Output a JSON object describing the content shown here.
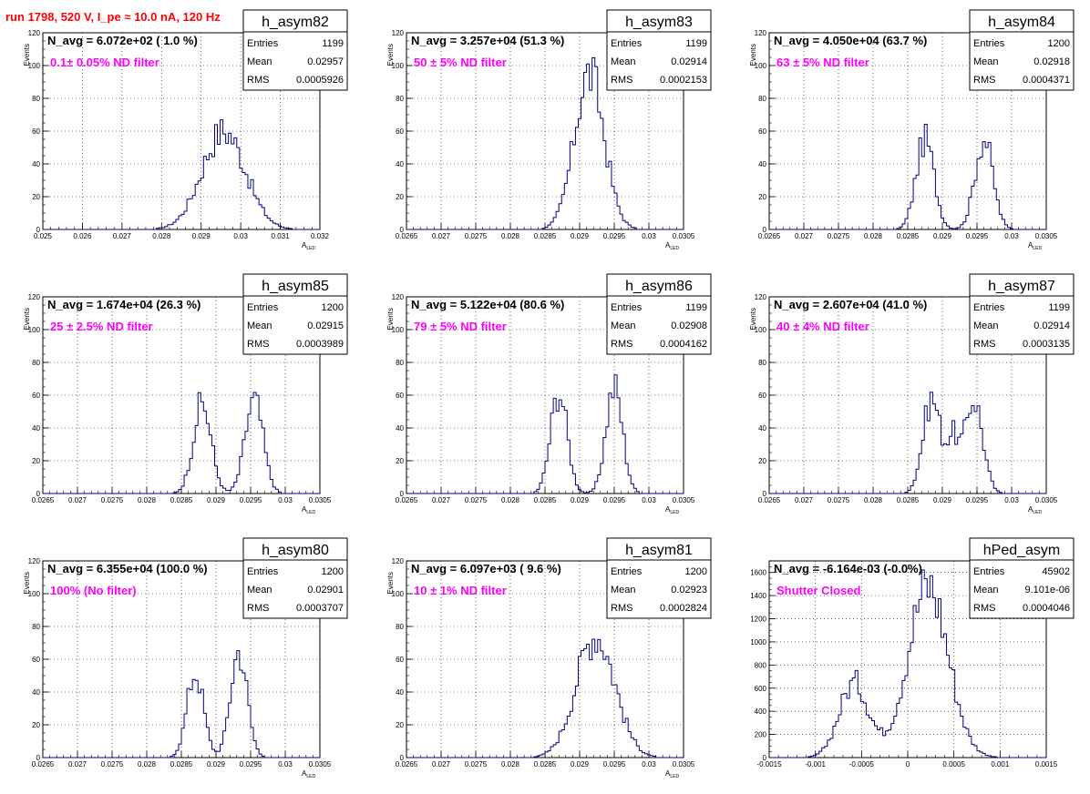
{
  "run_title": "run 1798,   520 V, I_pe ≈ 10.0 nA, 120 Hz",
  "stats_labels": [
    "Entries",
    "Mean",
    "RMS"
  ],
  "hist_color": "#000080",
  "title_color": "#ff0000",
  "filter_color": "#ff00ff",
  "chart_data": [
    {
      "type": "histogram",
      "hist_name": "h_asym82",
      "navg": "N_avg = 6.072e+02 ( 1.0 %)",
      "filter": "0.1± 0.05% ND filter",
      "stats": [
        "1199",
        "0.02957",
        "0.0005926"
      ],
      "xlabel": "A",
      "xlabel_sub": "LED",
      "ylabel": "Events",
      "xlim": [
        0.025,
        0.032
      ],
      "ylim": [
        0,
        120
      ],
      "xticks": [
        0.025,
        0.026,
        0.027,
        0.028,
        0.029,
        0.03,
        0.031,
        0.032
      ],
      "xtick_labels": [
        "0.025",
        "0.026",
        "0.027",
        "0.028",
        "0.029",
        "0.03",
        "0.031",
        "0.032"
      ],
      "yticks": [
        0,
        20,
        40,
        60,
        80,
        100,
        120
      ],
      "ytick_labels": [
        "0",
        "20",
        "40",
        "60",
        "80",
        "100",
        "120"
      ],
      "peaks": [
        [
          0.02957,
          0.00055,
          60
        ]
      ]
    },
    {
      "type": "histogram",
      "hist_name": "h_asym83",
      "navg": "N_avg = 3.257e+04 (51.3 %)",
      "filter": "50 ± 5% ND filter",
      "stats": [
        "1199",
        "0.02914",
        "0.0002153"
      ],
      "xlabel": "A",
      "xlabel_sub": "LED",
      "ylabel": "Events",
      "xlim": [
        0.0265,
        0.0305
      ],
      "ylim": [
        0,
        120
      ],
      "xticks": [
        0.0265,
        0.027,
        0.0275,
        0.028,
        0.0285,
        0.029,
        0.0295,
        0.03,
        0.0305
      ],
      "xtick_labels": [
        "0.0265",
        "0.027",
        "0.0275",
        "0.028",
        "0.0285",
        "0.029",
        "0.0295",
        "0.03",
        "0.0305"
      ],
      "yticks": [
        0,
        20,
        40,
        60,
        80,
        100,
        120
      ],
      "ytick_labels": [
        "0",
        "20",
        "40",
        "60",
        "80",
        "100",
        "120"
      ],
      "peaks": [
        [
          0.02914,
          0.000215,
          95
        ]
      ]
    },
    {
      "type": "histogram",
      "hist_name": "h_asym84",
      "navg": "N_avg = 4.050e+04 (63.7 %)",
      "filter": "63 ± 5% ND filter",
      "stats": [
        "1200",
        "0.02918",
        "0.0004371"
      ],
      "xlabel": "A",
      "xlabel_sub": "LED",
      "ylabel": "Events",
      "xlim": [
        0.0265,
        0.0305
      ],
      "ylim": [
        0,
        120
      ],
      "xticks": [
        0.0265,
        0.027,
        0.0275,
        0.028,
        0.0285,
        0.029,
        0.0295,
        0.03,
        0.0305
      ],
      "xtick_labels": [
        "0.0265",
        "0.027",
        "0.0275",
        "0.028",
        "0.0285",
        "0.029",
        "0.0295",
        "0.03",
        "0.0305"
      ],
      "yticks": [
        0,
        20,
        40,
        60,
        80,
        100,
        120
      ],
      "ytick_labels": [
        "0",
        "20",
        "40",
        "60",
        "80",
        "100",
        "120"
      ],
      "peaks": [
        [
          0.02875,
          0.00013,
          55
        ],
        [
          0.0296,
          0.00013,
          55
        ]
      ]
    },
    {
      "type": "histogram",
      "hist_name": "h_asym85",
      "navg": "N_avg = 1.674e+04 (26.3 %)",
      "filter": "25 ± 2.5% ND filter",
      "stats": [
        "1200",
        "0.02915",
        "0.0003989"
      ],
      "xlabel": "A",
      "xlabel_sub": "LED",
      "ylabel": "Events",
      "xlim": [
        0.0265,
        0.0305
      ],
      "ylim": [
        0,
        120
      ],
      "xticks": [
        0.0265,
        0.027,
        0.0275,
        0.028,
        0.0285,
        0.029,
        0.0295,
        0.03,
        0.0305
      ],
      "xtick_labels": [
        "0.0265",
        "0.027",
        "0.0275",
        "0.028",
        "0.0285",
        "0.029",
        "0.0295",
        "0.03",
        "0.0305"
      ],
      "yticks": [
        0,
        20,
        40,
        60,
        80,
        100,
        120
      ],
      "ytick_labels": [
        "0",
        "20",
        "40",
        "60",
        "80",
        "100",
        "120"
      ],
      "peaks": [
        [
          0.0288,
          0.00013,
          55
        ],
        [
          0.02955,
          0.00013,
          57
        ]
      ]
    },
    {
      "type": "histogram",
      "hist_name": "h_asym86",
      "navg": "N_avg = 5.122e+04 (80.6 %)",
      "filter": "79 ± 5% ND filter",
      "stats": [
        "1199",
        "0.02908",
        "0.0004162"
      ],
      "xlabel": "A",
      "xlabel_sub": "LED",
      "ylabel": "Events",
      "xlim": [
        0.0265,
        0.0305
      ],
      "ylim": [
        0,
        120
      ],
      "xticks": [
        0.0265,
        0.027,
        0.0275,
        0.028,
        0.0285,
        0.029,
        0.0295,
        0.03,
        0.0305
      ],
      "xtick_labels": [
        "0.0265",
        "0.027",
        "0.0275",
        "0.028",
        "0.0285",
        "0.029",
        "0.0295",
        "0.03",
        "0.0305"
      ],
      "yticks": [
        0,
        20,
        40,
        60,
        80,
        100,
        120
      ],
      "ytick_labels": [
        "0",
        "20",
        "40",
        "60",
        "80",
        "100",
        "120"
      ],
      "peaks": [
        [
          0.0287,
          0.00012,
          62
        ],
        [
          0.0295,
          0.00012,
          65
        ]
      ]
    },
    {
      "type": "histogram",
      "hist_name": "h_asym87",
      "navg": "N_avg = 2.607e+04 (41.0 %)",
      "filter": "40 ± 4% ND filter",
      "stats": [
        "1199",
        "0.02914",
        "0.0003135"
      ],
      "xlabel": "A",
      "xlabel_sub": "LED",
      "ylabel": "Events",
      "xlim": [
        0.0265,
        0.0305
      ],
      "ylim": [
        0,
        120
      ],
      "xticks": [
        0.0265,
        0.027,
        0.0275,
        0.028,
        0.0285,
        0.029,
        0.0295,
        0.03,
        0.0305
      ],
      "xtick_labels": [
        "0.0265",
        "0.027",
        "0.0275",
        "0.028",
        "0.0285",
        "0.029",
        "0.0295",
        "0.03",
        "0.0305"
      ],
      "yticks": [
        0,
        20,
        40,
        60,
        80,
        100,
        120
      ],
      "ytick_labels": [
        "0",
        "20",
        "40",
        "60",
        "80",
        "100",
        "120"
      ],
      "peaks": [
        [
          0.02885,
          0.00013,
          58
        ],
        [
          0.02945,
          0.00013,
          58
        ],
        [
          0.02915,
          8e-05,
          30
        ]
      ]
    },
    {
      "type": "histogram",
      "hist_name": "h_asym80",
      "navg": "N_avg = 6.355e+04 (100.0 %)",
      "filter": "100% (No filter)",
      "stats": [
        "1200",
        "0.02901",
        "0.0003707"
      ],
      "xlabel": "A",
      "xlabel_sub": "LED",
      "ylabel": "Events",
      "xlim": [
        0.0265,
        0.0305
      ],
      "ylim": [
        0,
        120
      ],
      "xticks": [
        0.0265,
        0.027,
        0.0275,
        0.028,
        0.0285,
        0.029,
        0.0295,
        0.03,
        0.0305
      ],
      "xtick_labels": [
        "0.0265",
        "0.027",
        "0.0275",
        "0.028",
        "0.0285",
        "0.029",
        "0.0295",
        "0.03",
        "0.0305"
      ],
      "yticks": [
        0,
        20,
        40,
        60,
        80,
        100,
        120
      ],
      "ytick_labels": [
        "0",
        "20",
        "40",
        "60",
        "80",
        "100",
        "120"
      ],
      "peaks": [
        [
          0.0287,
          0.00012,
          52
        ],
        [
          0.02933,
          0.00012,
          65
        ]
      ]
    },
    {
      "type": "histogram",
      "hist_name": "h_asym81",
      "navg": "N_avg = 6.097e+03 ( 9.6 %)",
      "filter": "10 ± 1% ND filter",
      "stats": [
        "1200",
        "0.02923",
        "0.0002824"
      ],
      "xlabel": "A",
      "xlabel_sub": "LED",
      "ylabel": "Events",
      "xlim": [
        0.0265,
        0.0305
      ],
      "ylim": [
        0,
        120
      ],
      "xticks": [
        0.0265,
        0.027,
        0.0275,
        0.028,
        0.0285,
        0.029,
        0.0295,
        0.03,
        0.0305
      ],
      "xtick_labels": [
        "0.0265",
        "0.027",
        "0.0275",
        "0.028",
        "0.0285",
        "0.029",
        "0.0295",
        "0.03",
        "0.0305"
      ],
      "yticks": [
        0,
        20,
        40,
        60,
        80,
        100,
        120
      ],
      "ytick_labels": [
        "0",
        "20",
        "40",
        "60",
        "80",
        "100",
        "120"
      ],
      "peaks": [
        [
          0.02923,
          0.00028,
          75
        ]
      ]
    },
    {
      "type": "histogram",
      "hist_name": "hPed_asym",
      "navg": "N_avg = -6.164e-03 (-0.0%)",
      "filter": "Shutter Closed",
      "stats": [
        "45902",
        "9.101e-06",
        "0.0004046"
      ],
      "xlabel": "",
      "xlabel_sub": "",
      "ylabel": "",
      "xlim": [
        -0.0015,
        0.0015
      ],
      "ylim": [
        0,
        1700
      ],
      "xticks": [
        -0.0015,
        -0.001,
        -0.0005,
        0,
        0.0005,
        0.001,
        0.0015
      ],
      "xtick_labels": [
        "-0.0015",
        "-0.001",
        "-0.0005",
        "0",
        "0.0005",
        "0.001",
        "0.0015"
      ],
      "yticks": [
        0,
        200,
        400,
        600,
        800,
        1000,
        1200,
        1400,
        1600
      ],
      "ytick_labels": [
        "0",
        "200",
        "400",
        "600",
        "800",
        "1000",
        "1200",
        "1400",
        "1600"
      ],
      "peaks": [
        [
          -0.00058,
          0.00016,
          650
        ],
        [
          0.00022,
          0.00022,
          1490
        ]
      ]
    }
  ]
}
